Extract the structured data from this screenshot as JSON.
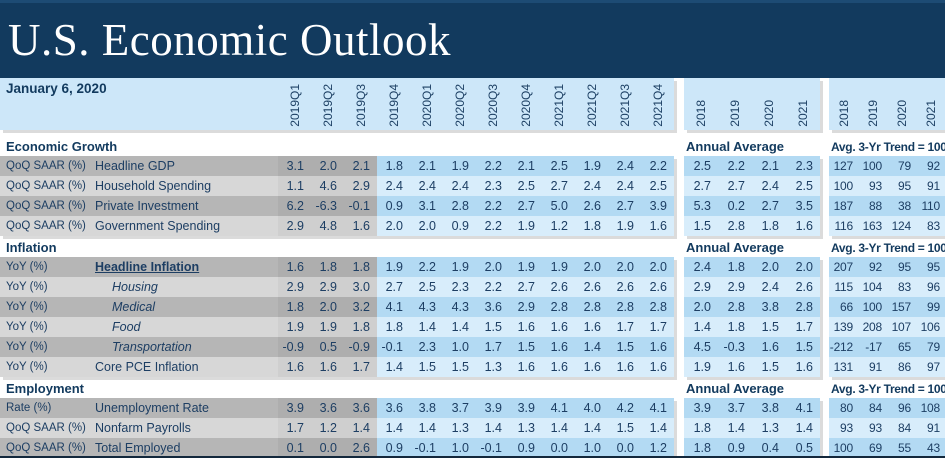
{
  "title": "U.S. Economic Outlook",
  "date": "January 6, 2020",
  "column_groups": {
    "quarters": [
      "2019Q1",
      "2019Q2",
      "2019Q3",
      "2019Q4",
      "2020Q1",
      "2020Q2",
      "2020Q3",
      "2020Q4",
      "2021Q1",
      "2021Q2",
      "2021Q3",
      "2021Q4"
    ],
    "annual": {
      "label": "Annual Average",
      "years": [
        "2018",
        "2019",
        "2020",
        "2021"
      ]
    },
    "trend": {
      "label": "Avg. 3-Yr Trend = 100",
      "years": [
        "2018",
        "2019",
        "2020",
        "2021"
      ]
    }
  },
  "colors": {
    "header_navy": "#123a5e",
    "band_blue": "#cde7f9",
    "forecast_blue_dark": "#b3daf3",
    "forecast_blue_light": "#d8edfb",
    "actual_gray_dark": "#aeaeae",
    "actual_gray_light": "#cfcfcf",
    "label_gray_dark": "#b6b6b6",
    "label_gray_light": "#d7d7d7",
    "text_navy": "#1d3e63"
  },
  "sections": [
    {
      "name": "Economic Growth",
      "rows": [
        {
          "unit": "QoQ SAAR (%)",
          "label": "Headline GDP",
          "style": "normal",
          "quarters": [
            "3.1",
            "2.0",
            "2.1",
            "1.8",
            "2.1",
            "1.9",
            "2.2",
            "2.1",
            "2.5",
            "1.9",
            "2.4",
            "2.2"
          ],
          "annual": [
            "2.5",
            "2.2",
            "2.1",
            "2.3"
          ],
          "trend": [
            "127",
            "100",
            "79",
            "92"
          ]
        },
        {
          "unit": "QoQ SAAR (%)",
          "label": "Household Spending",
          "style": "normal",
          "quarters": [
            "1.1",
            "4.6",
            "2.9",
            "2.4",
            "2.4",
            "2.4",
            "2.3",
            "2.5",
            "2.7",
            "2.4",
            "2.4",
            "2.5"
          ],
          "annual": [
            "2.7",
            "2.7",
            "2.4",
            "2.5"
          ],
          "trend": [
            "100",
            "93",
            "95",
            "91"
          ]
        },
        {
          "unit": "QoQ SAAR (%)",
          "label": "Private Investment",
          "style": "normal",
          "quarters": [
            "6.2",
            "-6.3",
            "-0.1",
            "0.9",
            "3.1",
            "2.8",
            "2.2",
            "2.7",
            "5.0",
            "2.6",
            "2.7",
            "3.9"
          ],
          "annual": [
            "5.3",
            "0.2",
            "2.7",
            "3.5"
          ],
          "trend": [
            "187",
            "88",
            "38",
            "110"
          ]
        },
        {
          "unit": "QoQ SAAR (%)",
          "label": "Government Spending",
          "style": "normal",
          "quarters": [
            "2.9",
            "4.8",
            "1.6",
            "2.0",
            "2.0",
            "0.9",
            "2.2",
            "1.9",
            "1.2",
            "1.8",
            "1.9",
            "1.6"
          ],
          "annual": [
            "1.5",
            "2.8",
            "1.8",
            "1.6"
          ],
          "trend": [
            "116",
            "163",
            "124",
            "83"
          ]
        }
      ]
    },
    {
      "name": "Inflation",
      "rows": [
        {
          "unit": "YoY (%)",
          "label": "Headline Inflation",
          "style": "bold-underline",
          "quarters": [
            "1.6",
            "1.8",
            "1.8",
            "1.9",
            "2.2",
            "1.9",
            "2.0",
            "1.9",
            "1.9",
            "2.0",
            "2.0",
            "2.0"
          ],
          "annual": [
            "2.4",
            "1.8",
            "2.0",
            "2.0"
          ],
          "trend": [
            "207",
            "92",
            "95",
            "95"
          ]
        },
        {
          "unit": "YoY (%)",
          "label": "Housing",
          "style": "italic-indent",
          "quarters": [
            "2.9",
            "2.9",
            "3.0",
            "2.7",
            "2.5",
            "2.3",
            "2.2",
            "2.7",
            "2.6",
            "2.6",
            "2.6",
            "2.6"
          ],
          "annual": [
            "2.9",
            "2.9",
            "2.4",
            "2.6"
          ],
          "trend": [
            "115",
            "104",
            "83",
            "96"
          ]
        },
        {
          "unit": "YoY (%)",
          "label": "Medical",
          "style": "italic-indent",
          "quarters": [
            "1.8",
            "2.0",
            "3.2",
            "4.1",
            "4.3",
            "4.3",
            "3.6",
            "2.9",
            "2.8",
            "2.8",
            "2.8",
            "2.8"
          ],
          "annual": [
            "2.0",
            "2.8",
            "3.8",
            "2.8"
          ],
          "trend": [
            "66",
            "100",
            "157",
            "99"
          ]
        },
        {
          "unit": "YoY (%)",
          "label": "Food",
          "style": "italic-indent",
          "quarters": [
            "1.9",
            "1.9",
            "1.8",
            "1.8",
            "1.4",
            "1.4",
            "1.5",
            "1.6",
            "1.6",
            "1.6",
            "1.7",
            "1.7"
          ],
          "annual": [
            "1.4",
            "1.8",
            "1.5",
            "1.7"
          ],
          "trend": [
            "139",
            "208",
            "107",
            "106"
          ]
        },
        {
          "unit": "YoY (%)",
          "label": "Transportation",
          "style": "italic-indent",
          "quarters": [
            "-0.9",
            "0.5",
            "-0.9",
            "-0.1",
            "2.3",
            "1.0",
            "1.7",
            "1.5",
            "1.6",
            "1.4",
            "1.5",
            "1.6"
          ],
          "annual": [
            "4.5",
            "-0.3",
            "1.6",
            "1.5"
          ],
          "trend": [
            "-212",
            "-17",
            "65",
            "79"
          ]
        },
        {
          "unit": "YoY (%)",
          "label": "Core PCE Inflation",
          "style": "normal",
          "quarters": [
            "1.6",
            "1.6",
            "1.7",
            "1.4",
            "1.5",
            "1.5",
            "1.3",
            "1.6",
            "1.6",
            "1.6",
            "1.6",
            "1.6"
          ],
          "annual": [
            "1.9",
            "1.6",
            "1.5",
            "1.6"
          ],
          "trend": [
            "131",
            "91",
            "86",
            "97"
          ]
        }
      ]
    },
    {
      "name": "Employment",
      "rows": [
        {
          "unit": "Rate (%)",
          "label": "Unemployment Rate",
          "style": "normal",
          "quarters": [
            "3.9",
            "3.6",
            "3.6",
            "3.6",
            "3.8",
            "3.7",
            "3.9",
            "3.9",
            "4.1",
            "4.0",
            "4.2",
            "4.1"
          ],
          "annual": [
            "3.9",
            "3.7",
            "3.8",
            "4.1"
          ],
          "trend": [
            "80",
            "84",
            "96",
            "108"
          ]
        },
        {
          "unit": "QoQ SAAR (%)",
          "label": "Nonfarm Payrolls",
          "style": "normal",
          "quarters": [
            "1.7",
            "1.2",
            "1.4",
            "1.4",
            "1.4",
            "1.3",
            "1.4",
            "1.3",
            "1.4",
            "1.4",
            "1.5",
            "1.4"
          ],
          "annual": [
            "1.8",
            "1.4",
            "1.3",
            "1.4"
          ],
          "trend": [
            "93",
            "93",
            "84",
            "91"
          ]
        },
        {
          "unit": "QoQ SAAR (%)",
          "label": "Total Employed",
          "style": "normal",
          "quarters": [
            "0.1",
            "0.0",
            "2.6",
            "0.9",
            "-0.1",
            "1.0",
            "-0.1",
            "0.9",
            "0.0",
            "1.0",
            "0.0",
            "1.2"
          ],
          "annual": [
            "1.8",
            "0.9",
            "0.4",
            "0.5"
          ],
          "trend": [
            "100",
            "69",
            "55",
            "43"
          ]
        }
      ]
    }
  ]
}
